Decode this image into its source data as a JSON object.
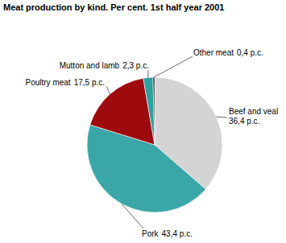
{
  "chart_data": {
    "type": "pie",
    "title": "Meat production by kind. Per cent. 1st half year 2001",
    "categories": [
      "Beef and veal",
      "Pork",
      "Poultry meat",
      "Mutton and lamb",
      "Other meat"
    ],
    "values": [
      36.4,
      43.4,
      17.5,
      2.3,
      0.4
    ],
    "value_labels": [
      "36,4 p.c.",
      "43,4 p.c.",
      "17,5 p.c.",
      "2,3 p.c.",
      "0,4 p.c."
    ],
    "colors": [
      "#d4d4d4",
      "#3aa6a8",
      "#9e0b0f",
      "#2f9fa0",
      "#262626"
    ],
    "data_labels": true
  }
}
